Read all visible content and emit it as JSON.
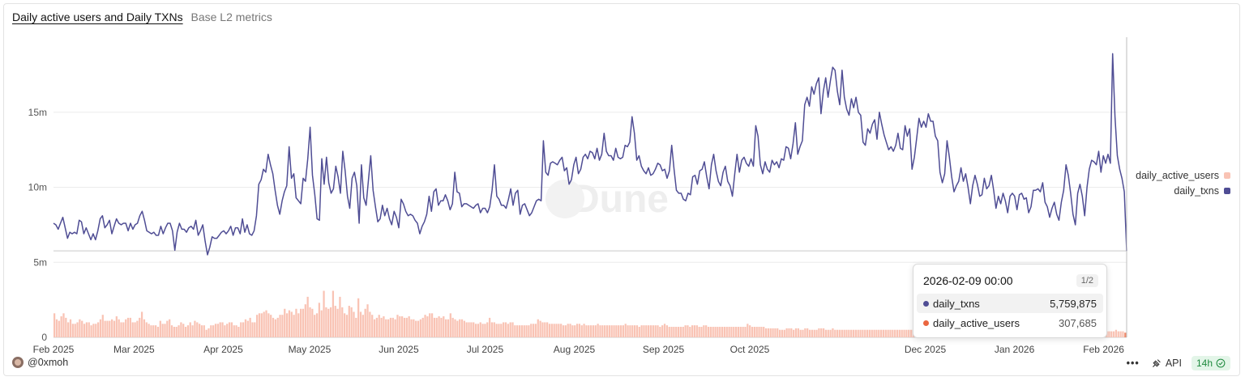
{
  "header": {
    "title": "Daily active users and Daily TXNs",
    "subtitle": "Base L2 metrics"
  },
  "watermark": "Dune",
  "footer": {
    "author": "@0xmoh",
    "api_label": "API",
    "refresh_badge": "14h"
  },
  "tooltip": {
    "datetime": "2026-02-09 00:00",
    "page": "1/2",
    "rows": [
      {
        "label": "daily_txns",
        "value": "5,759,875",
        "color": "#4f4d94"
      },
      {
        "label": "daily_active_users",
        "value": "307,685",
        "color": "#ea6640"
      }
    ]
  },
  "chart_data": {
    "type": "line",
    "x_start": "2025-02-01",
    "x_end": "2026-02-09",
    "xticks": [
      "Feb 2025",
      "Mar 2025",
      "Apr 2025",
      "May 2025",
      "Jun 2025",
      "Jul 2025",
      "Aug 2025",
      "Sep 2025",
      "Oct 2025",
      "Dec 2025",
      "Jan 2026",
      "Feb 2026"
    ],
    "yticks": [
      "0",
      "5m",
      "10m",
      "15m"
    ],
    "ylim": [
      0,
      20000000
    ],
    "grid": true,
    "legend_position": "right",
    "legend": [
      "daily_active_users",
      "daily_txns"
    ],
    "series": [
      {
        "name": "daily_txns",
        "kind": "line",
        "color": "#4f4d94",
        "values_m": [
          7.6,
          7.5,
          7.2,
          7.6,
          8.0,
          7.3,
          6.6,
          7.0,
          6.9,
          7.0,
          6.9,
          7.8,
          7.7,
          6.9,
          7.3,
          6.9,
          6.5,
          6.9,
          6.5,
          7.1,
          7.9,
          8.1,
          7.3,
          7.5,
          7.8,
          6.9,
          7.4,
          7.9,
          7.6,
          7.5,
          7.6,
          7.6,
          7.1,
          7.6,
          7.2,
          7.5,
          7.6,
          8.1,
          8.4,
          7.8,
          7.1,
          7.0,
          6.9,
          7.0,
          6.8,
          6.8,
          7.4,
          6.9,
          7.3,
          7.6,
          7.6,
          7.1,
          5.8,
          7.0,
          7.6,
          7.2,
          7.2,
          7.0,
          7.3,
          7.4,
          7.2,
          7.8,
          6.8,
          7.1,
          7.5,
          6.4,
          5.5,
          6.0,
          6.7,
          6.6,
          6.6,
          6.8,
          7.0,
          7.1,
          6.9,
          7.1,
          7.4,
          6.8,
          7.3,
          7.3,
          6.9,
          7.9,
          7.0,
          7.5,
          6.9,
          6.8,
          7.1,
          8.1,
          10.2,
          10.5,
          11.2,
          11.0,
          12.2,
          11.5,
          10.9,
          9.8,
          8.8,
          8.2,
          9.1,
          9.7,
          10.1,
          12.7,
          10.6,
          10.9,
          9.3,
          9.1,
          8.9,
          10.6,
          10.4,
          11.9,
          14.0,
          10.8,
          9.5,
          7.9,
          7.8,
          11.9,
          10.2,
          12.0,
          10.3,
          9.6,
          9.9,
          11.4,
          10.7,
          9.6,
          12.4,
          11.1,
          9.4,
          8.6,
          10.6,
          11.0,
          10.1,
          7.6,
          11.5,
          9.3,
          8.8,
          10.5,
          12.1,
          9.8,
          8.7,
          7.7,
          7.9,
          8.8,
          8.1,
          8.6,
          7.9,
          7.5,
          8.4,
          8.0,
          7.3,
          9.2,
          8.9,
          8.4,
          8.1,
          8.2,
          8.1,
          7.8,
          7.6,
          6.9,
          7.4,
          7.7,
          8.2,
          9.4,
          8.4,
          9.7,
          9.9,
          8.8,
          9.1,
          9.1,
          9.5,
          9.1,
          8.5,
          8.9,
          11.0,
          9.7,
          9.6,
          8.7,
          8.9,
          8.9,
          8.8,
          8.7,
          8.6,
          8.8,
          8.9,
          8.3,
          8.6,
          8.6,
          8.3,
          8.7,
          9.8,
          11.5,
          9.4,
          9.2,
          8.8,
          8.8,
          8.6,
          9.2,
          9.9,
          8.8,
          9.6,
          9.8,
          8.2,
          8.8,
          8.9,
          8.5,
          8.1,
          8.3,
          8.7,
          9.1,
          9.2,
          9.1,
          13.1,
          11.0,
          10.8,
          11.6,
          11.7,
          11.6,
          11.5,
          11.8,
          12.0,
          11.1,
          11.3,
          10.2,
          10.5,
          11.5,
          12.0,
          10.9,
          11.2,
          12.0,
          12.2,
          11.9,
          12.4,
          12.3,
          11.9,
          12.6,
          11.8,
          12.2,
          13.6,
          12.4,
          12.1,
          12.1,
          11.8,
          12.6,
          12.0,
          11.9,
          12.0,
          12.8,
          12.7,
          13.0,
          14.7,
          13.6,
          11.8,
          12.1,
          11.4,
          11.1,
          10.9,
          11.3,
          10.8,
          10.9,
          11.2,
          11.6,
          11.5,
          11.1,
          11.2,
          10.6,
          11.1,
          12.8,
          11.2,
          9.8,
          9.6,
          9.6,
          9.2,
          9.1,
          9.6,
          9.5,
          10.7,
          10.8,
          10.2,
          11.1,
          11.2,
          11.7,
          10.7,
          9.9,
          11.5,
          12.2,
          11.1,
          10.4,
          10.1,
          11.0,
          11.4,
          10.4,
          10.1,
          9.4,
          10.9,
          12.2,
          11.0,
          11.8,
          12.0,
          11.6,
          11.4,
          11.9,
          11.4,
          14.1,
          13.4,
          11.5,
          10.9,
          11.7,
          11.2,
          11.0,
          11.8,
          11.5,
          11.7,
          11.3,
          11.9,
          11.8,
          12.7,
          12.6,
          11.9,
          12.9,
          14.3,
          12.2,
          12.7,
          13.1,
          15.5,
          16.0,
          15.4,
          16.7,
          16.2,
          16.9,
          17.3,
          14.9,
          16.4,
          17.3,
          16.0,
          17.1,
          18.0,
          17.8,
          16.4,
          15.5,
          17.8,
          16.0,
          15.2,
          14.8,
          15.9,
          15.3,
          16.0,
          15.0,
          14.8,
          13.0,
          12.8,
          13.9,
          13.6,
          14.2,
          14.5,
          13.2,
          15.0,
          14.2,
          13.5,
          13.0,
          12.5,
          12.7,
          12.4,
          12.8,
          13.6,
          12.6,
          12.5,
          14.1,
          13.4,
          13.9,
          11.2,
          12.0,
          13.3,
          14.6,
          14.0,
          14.4,
          14.0,
          14.9,
          14.4,
          14.4,
          13.4,
          13.1,
          11.0,
          10.3,
          10.9,
          13.1,
          12.0,
          10.7,
          9.7,
          10.1,
          10.4,
          11.3,
          10.4,
          10.9,
          10.0,
          8.9,
          10.1,
          10.8,
          10.2,
          9.4,
          9.5,
          10.6,
          9.9,
          10.1,
          10.8,
          9.8,
          8.6,
          9.4,
          8.9,
          9.6,
          9.1,
          8.3,
          9.4,
          9.6,
          9.4,
          8.5,
          9.5,
          9.6,
          9.2,
          9.3,
          8.3,
          8.7,
          9.8,
          9.8,
          9.9,
          9.7,
          10.3,
          9.0,
          8.7,
          8.0,
          8.6,
          9.0,
          8.2,
          7.8,
          9.0,
          9.8,
          11.5,
          10.8,
          9.6,
          8.2,
          7.5,
          9.6,
          10.2,
          9.4,
          8.1,
          10.0,
          11.2,
          11.8,
          11.7,
          11.5,
          12.4,
          11.0,
          12.1,
          11.6,
          12.2,
          11.6,
          18.9,
          14.7,
          12.1,
          11.2,
          10.6,
          9.7,
          5.76
        ]
      },
      {
        "name": "daily_active_users",
        "kind": "bar",
        "color": "#f9c3b4",
        "values_m": [
          1.6,
          1.2,
          1.1,
          1.4,
          1.6,
          1.3,
          1.0,
          1.2,
          0.9,
          0.9,
          1.0,
          1.2,
          1.1,
          0.9,
          1.0,
          1.0,
          0.8,
          0.9,
          0.9,
          1.0,
          1.2,
          1.5,
          1.1,
          1.1,
          1.1,
          1.2,
          1.1,
          1.4,
          1.2,
          1.0,
          1.0,
          1.2,
          1.3,
          1.3,
          1.0,
          1.0,
          1.1,
          1.3,
          1.7,
          1.2,
          1.0,
          0.9,
          0.8,
          0.8,
          0.8,
          0.7,
          1.1,
          0.9,
          0.9,
          1.1,
          1.2,
          0.8,
          0.7,
          0.7,
          0.8,
          1.0,
          0.9,
          0.7,
          0.8,
          1.0,
          0.8,
          1.1,
          1.0,
          0.9,
          0.8,
          0.8,
          0.5,
          0.6,
          0.8,
          0.8,
          0.9,
          0.9,
          1.0,
          1.0,
          0.8,
          0.9,
          1.0,
          1.0,
          0.8,
          0.8,
          0.7,
          1.0,
          1.0,
          1.2,
          1.1,
          1.3,
          1.0,
          1.0,
          1.5,
          1.6,
          1.6,
          1.7,
          1.8,
          1.6,
          1.5,
          1.3,
          1.2,
          1.3,
          1.5,
          1.5,
          1.9,
          1.6,
          1.8,
          1.7,
          1.5,
          1.9,
          1.6,
          1.9,
          1.9,
          2.2,
          2.7,
          2.0,
          1.9,
          1.5,
          1.6,
          2.3,
          1.8,
          3.1,
          2.0,
          1.9,
          2.0,
          3.1,
          2.1,
          1.9,
          2.7,
          2.0,
          1.6,
          1.5,
          2.1,
          2.0,
          1.7,
          1.3,
          2.6,
          1.7,
          1.5,
          1.9,
          2.2,
          1.7,
          1.5,
          1.2,
          1.3,
          1.5,
          1.3,
          1.4,
          1.2,
          1.2,
          1.3,
          1.3,
          1.2,
          1.5,
          1.4,
          1.4,
          1.3,
          1.3,
          1.4,
          1.2,
          1.2,
          1.1,
          1.1,
          1.2,
          1.3,
          1.5,
          1.4,
          1.6,
          1.6,
          1.3,
          1.3,
          1.4,
          1.3,
          1.4,
          1.2,
          1.2,
          1.6,
          1.3,
          1.2,
          1.1,
          1.2,
          1.2,
          1.1,
          1.0,
          1.0,
          1.0,
          1.0,
          0.9,
          0.9,
          1.0,
          0.9,
          0.9,
          1.0,
          1.3,
          1.0,
          1.0,
          0.9,
          0.9,
          0.9,
          1.0,
          1.0,
          0.9,
          1.0,
          1.0,
          0.8,
          0.8,
          0.8,
          0.8,
          0.8,
          0.8,
          0.8,
          0.9,
          0.9,
          0.9,
          1.2,
          1.1,
          1.0,
          1.0,
          1.0,
          0.9,
          0.9,
          0.9,
          0.9,
          0.9,
          0.9,
          0.8,
          0.8,
          0.9,
          0.9,
          0.8,
          0.8,
          0.9,
          0.9,
          0.8,
          0.9,
          0.8,
          0.8,
          0.8,
          0.8,
          0.8,
          0.9,
          0.8,
          0.8,
          0.8,
          0.8,
          0.8,
          0.8,
          0.8,
          0.8,
          0.8,
          0.8,
          0.8,
          0.9,
          0.8,
          0.8,
          0.8,
          0.8,
          0.8,
          0.7,
          0.8,
          0.8,
          0.8,
          0.8,
          0.8,
          0.8,
          0.8,
          0.8,
          0.7,
          0.8,
          0.9,
          0.8,
          0.7,
          0.7,
          0.7,
          0.7,
          0.7,
          0.7,
          0.7,
          0.8,
          0.8,
          0.7,
          0.8,
          0.8,
          0.8,
          0.7,
          0.7,
          0.8,
          0.8,
          0.7,
          0.7,
          0.7,
          0.7,
          0.7,
          0.7,
          0.7,
          0.7,
          0.7,
          0.7,
          0.7,
          0.7,
          0.7,
          0.7,
          0.7,
          0.7,
          0.7,
          0.9,
          0.8,
          0.7,
          0.7,
          0.7,
          0.7,
          0.7,
          0.7,
          0.6,
          0.6,
          0.6,
          0.6,
          0.6,
          0.6,
          0.5,
          0.5,
          0.5,
          0.6,
          0.6,
          0.6,
          0.5,
          0.6,
          0.6,
          0.5,
          0.5,
          0.6,
          0.6,
          0.5,
          0.5,
          0.5,
          0.5,
          0.6,
          0.6,
          0.6,
          0.5,
          0.5,
          0.5,
          0.6,
          0.5,
          0.5,
          0.5,
          0.5,
          0.5,
          0.5,
          0.5,
          0.5,
          0.5,
          0.5,
          0.5,
          0.5,
          0.5,
          0.5,
          0.5,
          0.5,
          0.5,
          0.5,
          0.5,
          0.5,
          0.5,
          0.5,
          0.5,
          0.5,
          0.5,
          0.5,
          0.5,
          0.5,
          0.5,
          0.5,
          0.5,
          0.5,
          0.5,
          0.5,
          0.5,
          0.5,
          0.5,
          0.5,
          0.5,
          0.5,
          0.5,
          0.5,
          0.5,
          0.5,
          0.5,
          0.5,
          0.5,
          0.5,
          0.5,
          0.5,
          0.5,
          0.5,
          0.5,
          0.5,
          0.5,
          0.5,
          0.5,
          0.5,
          0.5,
          0.5,
          0.5,
          0.5,
          0.5,
          0.5,
          0.5,
          0.5,
          0.4,
          0.4,
          0.4,
          0.4,
          0.4,
          0.4,
          0.4,
          0.4,
          0.4,
          0.4,
          0.4,
          0.4,
          0.4,
          0.4,
          0.4,
          0.4,
          0.4,
          0.4,
          0.4,
          0.4,
          0.4,
          0.4,
          0.4,
          0.4,
          0.4,
          0.4,
          0.4,
          0.4,
          0.4,
          0.4,
          0.4,
          0.4,
          0.4,
          0.4,
          0.4,
          0.4,
          0.4,
          0.4,
          0.4,
          0.4,
          0.4,
          0.4,
          0.4,
          0.4,
          0.4,
          0.4,
          0.4,
          0.4,
          0.4,
          0.4,
          0.4,
          0.4,
          0.4,
          0.4,
          0.4,
          0.4,
          0.5,
          0.4,
          0.4,
          0.4,
          0.31
        ]
      }
    ]
  }
}
